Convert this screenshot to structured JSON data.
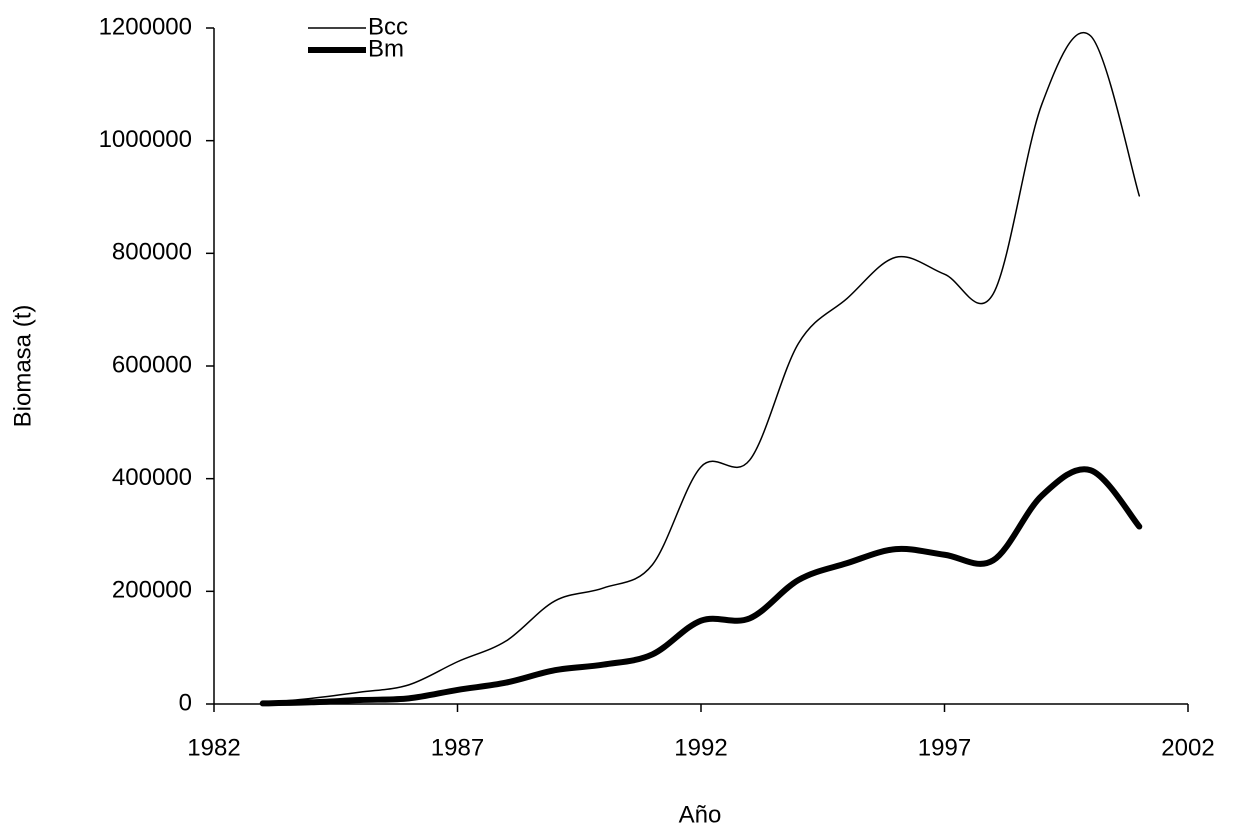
{
  "chart_data": {
    "type": "line",
    "x_label": "Año",
    "y_label": "Biomasa (t)",
    "x": [
      1983,
      1984,
      1985,
      1986,
      1987,
      1988,
      1989,
      1990,
      1991,
      1992,
      1993,
      1994,
      1995,
      1996,
      1997,
      1998,
      1999,
      2000,
      2001
    ],
    "series": [
      {
        "name": "Bcc",
        "color": "#000000",
        "line_width": 1.5,
        "values": [
          2000,
          10000,
          21000,
          34000,
          75000,
          112000,
          183000,
          206000,
          247000,
          421000,
          433000,
          640000,
          720000,
          793000,
          763000,
          728000,
          1065000,
          1186000,
          902000
        ]
      },
      {
        "name": "Bm",
        "color": "#000000",
        "line_width": 6,
        "values": [
          1000,
          3000,
          7000,
          10000,
          25000,
          38000,
          60000,
          70000,
          88000,
          148000,
          152000,
          220000,
          250000,
          275000,
          265000,
          255000,
          370000,
          415000,
          315000
        ]
      }
    ],
    "xlim": [
      1982,
      2002
    ],
    "xticks": [
      1982,
      1987,
      1992,
      1997,
      2002
    ],
    "ylim": [
      0,
      1200000
    ],
    "yticks": [
      0,
      200000,
      400000,
      600000,
      800000,
      1000000,
      1200000
    ],
    "grid": false,
    "legend": "top-left"
  }
}
